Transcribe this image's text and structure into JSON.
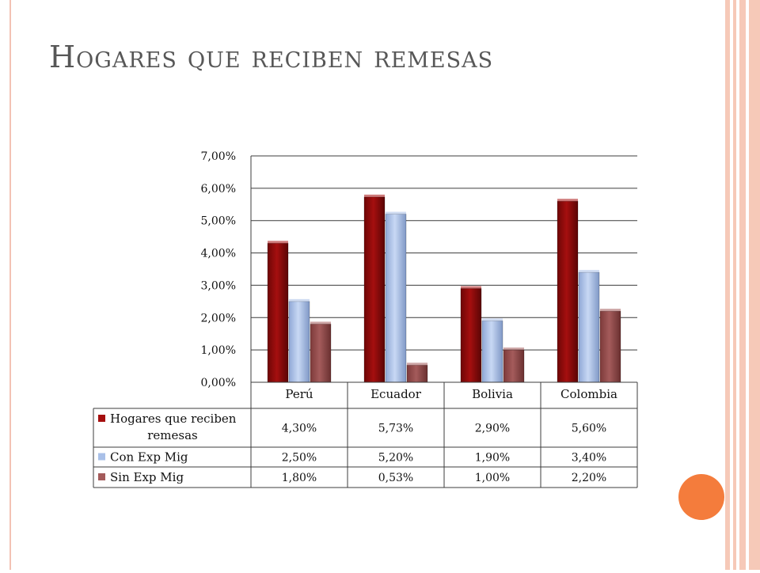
{
  "slide": {
    "title": "Hogares que reciben remesas"
  },
  "colors": {
    "series_1": "#a50f0f",
    "series_2": "#a9c0e8",
    "series_3": "#a45b5b",
    "accent_circle": "#f47c3c",
    "side_band": "#f6c9b8"
  },
  "chart_data": {
    "type": "bar",
    "categories": [
      "Perú",
      "Ecuador",
      "Bolivia",
      "Colombia"
    ],
    "series": [
      {
        "name": "Hogares que reciben remesas",
        "values": [
          4.3,
          5.73,
          2.9,
          5.6
        ],
        "labels": [
          "4,30%",
          "5,73%",
          "2,90%",
          "5,60%"
        ]
      },
      {
        "name": "Con Exp Mig",
        "values": [
          2.5,
          5.2,
          1.9,
          3.4
        ],
        "labels": [
          "2,50%",
          "5,20%",
          "1,90%",
          "3,40%"
        ]
      },
      {
        "name": "Sin Exp Mig",
        "values": [
          1.8,
          0.53,
          1.0,
          2.2
        ],
        "labels": [
          "1,80%",
          "0,53%",
          "1,00%",
          "2,20%"
        ]
      }
    ],
    "ylim": [
      0,
      7
    ],
    "yticks": [
      "0,00%",
      "1,00%",
      "2,00%",
      "3,00%",
      "4,00%",
      "5,00%",
      "6,00%",
      "7,00%"
    ],
    "grid": true,
    "legend": "data-table"
  }
}
